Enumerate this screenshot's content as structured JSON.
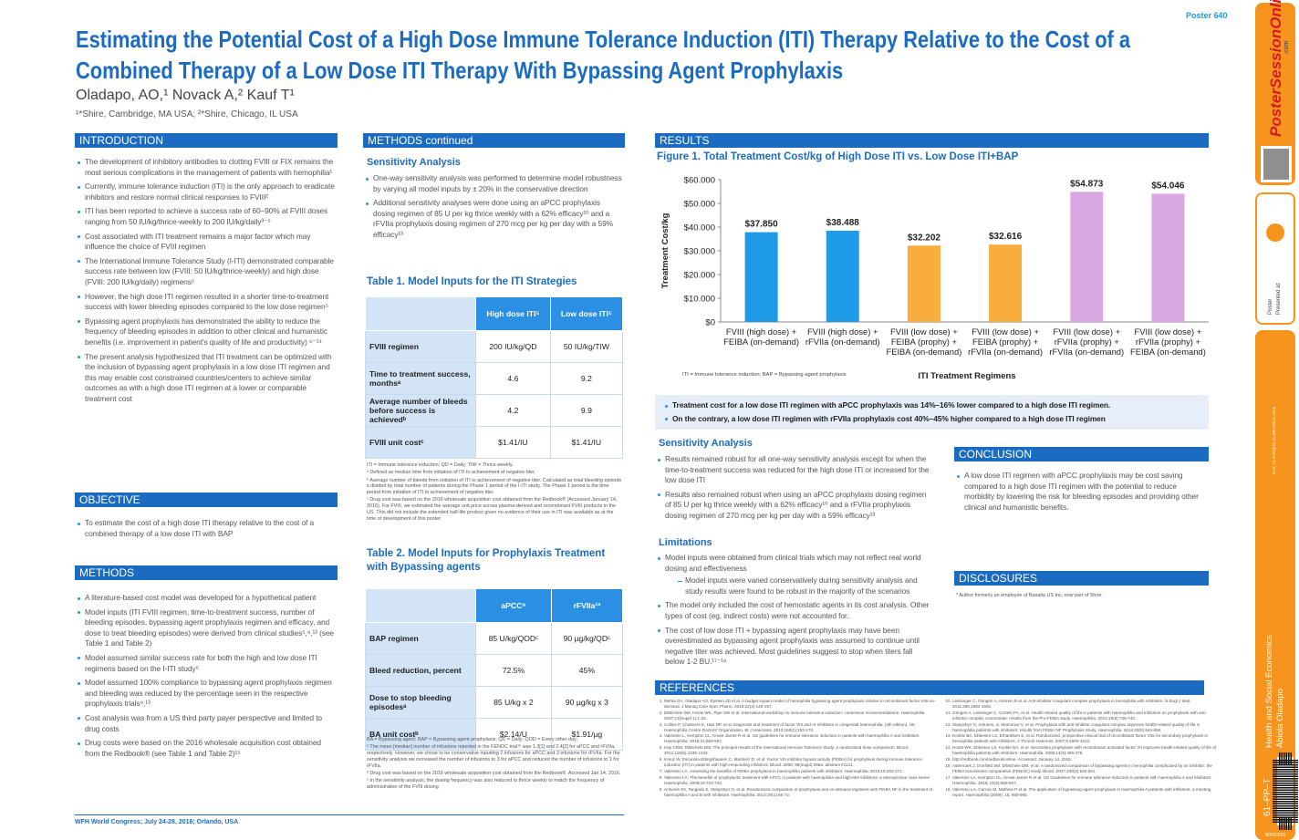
{
  "header": {
    "poster_number": "Poster 640",
    "title": "Estimating the Potential Cost of a High Dose Immune Tolerance Induction (ITI) Therapy Relative to the Cost of a Combined Therapy of a Low Dose ITI Therapy With Bypassing Agent Prophylaxis",
    "authors": "Oladapo, AO,¹ Novack A,² Kauf T¹",
    "affiliations": "¹*Shire, Cambridge, MA USA; ²*Shire, Chicago, IL USA"
  },
  "introduction": {
    "heading": "INTRODUCTION",
    "bullets": [
      "The development of inhibitory antibodies to clotting FVIII or FIX remains the most serious complications in the management of patients with hemophilia¹",
      "Currently, immune tolerance induction (ITI) is the only approach to eradicate inhibitors and restore normal clinical responses to FVIII²",
      "ITI has been reported to achieve a success rate of 60–90% at FVIII doses ranging from 50 IU/kg/thrice-weekly to 200 IU/kg/daily³⁻⁵",
      "Cost associated with ITI treatment remains a major factor which may influence the choice of FVIII regimen",
      "The International Immune Tolerance Study (I-ITI) demonstrated comparable success rate between low (FVIII: 50 IU/kg/thrice-weekly) and high dose (FVIII: 200 IU/kg/daily) regimens⁵",
      "However, the high dose ITI regimen resulted in a shorter time-to-treatment success with lower bleeding episodes compared to the low dose regimen⁵",
      "Bypassing agent prophylaxis has demonstrated the ability to reduce the frequency of bleeding episodes in addition to other clinical and humanistic benefits (i.e. improvement in patient's quality of life and productivity) ⁶⁻¹⁴",
      "The present analysis hypothesized that ITI treatment can be optimized with the inclusion of bypassing agent prophylaxis in a low dose ITI regimen and this may enable cost constrained countries/centers to achieve similar outcomes as with a high dose ITI regimen at a lower or comparable treatment cost"
    ]
  },
  "objective": {
    "heading": "OBJECTIVE",
    "bullets": [
      "To estimate the cost of a high dose ITI therapy relative to the cost of a combined therapy of a low dose ITI with BAP"
    ]
  },
  "methods": {
    "heading": "METHODS",
    "bullets": [
      "A literature-based cost model was developed for a hypothetical patient",
      "Model inputs (ITI FVIII regimen, time-to-treatment success, number of bleeding episodes, bypassing agent prophylaxis regimen and efficacy, and dose to treat bleeding episodes) were derived from clinical studies⁵,⁹,¹³ (see Table 1 and Table 2)",
      "Model assumed similar success rate for both the high and low dose ITI regimens based on the I-ITI study⁵",
      "Model assumed 100% compliance to bypassing agent prophylaxis regimen and bleeding was reduced by the percentage seen in the respective prophylaxis trials⁹,¹³",
      "Cost analysis was from a US third party payer perspective and limited to drug costs",
      "Drug costs were based on the 2016 wholesale acquisition cost obtained from the Redbook® (see Table 1 and Table 2)¹⁵"
    ]
  },
  "methods_continued": {
    "heading": "METHODS continued",
    "sensitivity": {
      "heading": "Sensitivity Analysis",
      "bullets": [
        "One-way sensitivity analysis was performed to determine model robustness by varying all model inputs by ± 20% in the conservative direction",
        "Additional sensitivity analyses were done using an aPCC prophylaxis dosing regimen of 85 U per kg thrice weekly with a 62% efficacy¹⁰ and a rFVIIa prophylaxis dosing regimen of 270 mcg per kg per day with a 59% efficacy¹³"
      ]
    },
    "table1": {
      "title": "Table 1. Model Inputs for the ITI Strategies",
      "columns": [
        "High dose ITI⁵",
        "Low dose ITI⁵"
      ],
      "rows": [
        [
          "FVIII regimen",
          "200 IU/kg/QD",
          "50 IU/kg/TIW"
        ],
        [
          "Time to treatment success, monthsᵃ",
          "4.6",
          "9.2"
        ],
        [
          "Average number of bleeds before success is achievedᵇ",
          "4.2",
          "9.9"
        ],
        [
          "FVIII unit costᶜ",
          "$1.41/IU",
          "$1.41/IU"
        ]
      ],
      "notes": [
        "ITI = Immune tolerance induction; QD = Daily; TIW = Thrice weekly.",
        "ᵃ Defined as median time from initiation of ITI to achievement of negative titer.",
        "ᵇ Average number of bleeds from initiation of ITI to achievement of negative titer. Calculated as total bleeding episode s divided by total number of patients during the Phase 1 period of the I-ITI study. The Phase 1 period is the time period from initiation of ITI to achievement of negative titer.",
        "ᶜ Drug cost was based on the 2016 wholesale acquisition cost obtained from the Redbook® (Accessed January 14, 2016). For FVIII, we estimated the average unit price across plasma-derived and recombinant FVIII products in the US. This did not include the extended half-life product given no evidence of their use in ITI was available as at the time of development of this poster."
      ]
    },
    "table2": {
      "title": "Table 2. Model Inputs for Prophylaxis Treatment with Bypassing agents",
      "columns": [
        "aPCC⁹",
        "rFVIIa¹³"
      ],
      "rows": [
        [
          "BAP regimen",
          "85 U/kg/QODᶜ",
          "90 µg/kg/QDᶜ"
        ],
        [
          "Bleed reduction, percent",
          "72.5%",
          "45%"
        ],
        [
          "Dose to stop bleeding episodesᵃ",
          "85 U/kg x 2",
          "90 µg/kg x 3"
        ],
        [
          "BA unit costᵇ",
          "$2.14/U",
          "$1.91/µg"
        ]
      ],
      "notes": [
        "BA = Bypassing agent; BAP = Bypassing agent prophylaxis; QD = Daily; QOD = Every other day;",
        "ᵃ The mean [median] number of infusions reported in the FENOC trial¹⁶ was 1.3[1] and 2.4[2] for aPCC and rFVIIa, respectively. However, we chose to be conservative inputting 2 infusions for aPCC and 3 infusions for rFVIIa. For the sensitivity analysis we increased the number of infusions to 3 for aPCC and reduced the number of infusions to 1 for rFVIIa.",
        "ᵇ Drug cost was based on the 2016 wholesale acquisition cost obtained from the Redbook®. Accessed Jan 14, 2016.",
        "ᶜ In the sensitivity analysis, the dosing frequency was also reduced to thrice weekly to match the frequency of administration of the FVIII dosing"
      ]
    }
  },
  "results": {
    "heading": "RESULTS",
    "key_findings": [
      "Treatment cost for a low dose ITI regimen with aPCC prophylaxis was 14%–16% lower compared to a high dose ITI regimen.",
      "On the contrary, a low dose ITI regimen with rFVIIa prophylaxis cost 40%–45% higher compared to a high dose ITI regimen"
    ],
    "sensitivity": {
      "heading": "Sensitivity Analysis",
      "bullets": [
        "Results remained robust for all one-way sensitivity analysis except for when the time-to-treatment success was reduced for the high dose ITI or increased for the low dose ITI",
        "Results also remained robust when using an aPCC prophylaxis dosing regimen of 85 U per kg thrice weekly with a 62% efficacy¹⁰ and a rFVIIa prophylaxis dosing regimen of 270 mcg per kg per day with a 59% efficacy¹³"
      ]
    },
    "limitations": {
      "heading": "Limitations",
      "bullets": [
        {
          "text": "Model inputs were obtained from clinical trials which may not reflect real world dosing and effectiveness",
          "sub": [
            "Model inputs were varied conservatively during sensitivity analysis and study results were found to be robust in the majority of the scenarios"
          ]
        },
        {
          "text": "The model only included the cost of hemostatic agents in its cost analysis. Other types of cost (eg, indirect costs) were not accounted for."
        },
        {
          "text": "The cost of low dose ITI + bypassing agent prophylaxis may have been overestimated as bypassing agent prophylaxis was assumed to continue until negative titer was achieved. Most guidelines suggest to stop when titers fall below 1-2 BU.¹⁷⁻¹⁸"
        }
      ]
    }
  },
  "chart_data": {
    "type": "bar",
    "title": "Figure 1.  Total Treatment Cost/kg of High Dose ITI vs. Low Dose ITI+BAP",
    "y_label": "Treatment Cost/kg",
    "x_label": "ITI Treatment Regimens",
    "note": "ITI = Immune tolerance induction; BAP = Bypassing agent prophylaxis",
    "categories": [
      "FVIII (high dose) +\nFEIBA (on-demand)",
      "FVIII (high dose) +\nrFVIIa (on-demand)",
      "FVIII (low dose) +\nFEIBA (prophy) +\nFEIBA (on-demand)",
      "FVIII (low dose) +\nFEIBA (prophy) +\nrFVIIa (on-demand)",
      "FVIII (low dose) +\nrFVIIa (prophy) +\nrFVIIa (on-demand)",
      "FVIII (low dose) +\nrFVIIa (prophy) +\nFEIBA (on-demand)"
    ],
    "values": [
      37850,
      38488,
      32202,
      32616,
      54873,
      54046
    ],
    "value_labels": [
      "$37.850",
      "$38.488",
      "$32.202",
      "$32.616",
      "$54.873",
      "$54.046"
    ],
    "colors": [
      "#1e9ae6",
      "#1e9ae6",
      "#f9ad3e",
      "#f9ad3e",
      "#d9a8e3",
      "#d9a8e3"
    ],
    "ylim": [
      0,
      60000
    ],
    "yticks": [
      {
        "value": 0,
        "label": "$0"
      },
      {
        "value": 10000,
        "label": "$10.000"
      },
      {
        "value": 20000,
        "label": "$20.000"
      },
      {
        "value": 30000,
        "label": "$30.000"
      },
      {
        "value": 40000,
        "label": "$40.000"
      },
      {
        "value": 50000,
        "label": "$50.000"
      },
      {
        "value": 60000,
        "label": "$60.000"
      }
    ],
    "grid": false
  },
  "conclusion": {
    "heading": "CONCLUSION",
    "bullets": [
      "A low dose ITI regimen with aPCC prophylaxis may be cost saving compared to a high dose ITI regimen with the potential to reduce morbidity by lowering the risk for bleeding episodes and providing other clinical and humanistic benefits."
    ]
  },
  "disclosures": {
    "heading": "DISCLOSURES",
    "text": "* Author formerly an employee of Baxalta US Inc, now part of Shire."
  },
  "references": {
    "heading": "REFERENCES",
    "items": [
      "Mehta DA, Oladapo AO, Epstein JD et al. A budget impact model of hemophilia bypassing agent prophylaxis relative to recombinant factor VIIa on-demand. J Manag Care Spec Pharm. 2016;22(2):149-157.",
      "DiMichele DM, Hoots WK, Pipe SW et al. International workshop on immune tolerance induction: consensus recommendations. Haemophilia. 2007;13(Suppl 1):1-22.",
      "Collins P, Chalmers E, Hart DP, et al. Diagnosis and treatment of factor VIII and IX inhibitors in congenital haemophilia: (4th edition). UK Haemophilia Centre Doctors' Organization. Br J Haematol. 2013;160(2):153-170.",
      "Valentino L, Kempton CL, Kruse-Jarres R et al. US guidelines for immune tolerance induction in patients with haemophilia A and inhibitors. Haemophilia. 2015;21:559-567.",
      "Hay CRM, DiMichele DM. The principal results of the International Immune Tolerance Study: a randomized dose comparison. Blood. 2012;119(6):1335-1344.",
      "Kreuz W, Escuriola-Ettingshausen C, Martinez D, et al. Factor VIII inhibitor bypass activity (FEIBA) for prophylaxis during immune tolerance induction (ITI) in patients with high-responding inhibitors. Blood. 2000; 96(suppl):266a. abstract #1141.",
      "Valentino LA. Assessing the benefits of FEIBA prophylaxis in haemophilia patients with inhibitors. Haemophilia. 2010;16:263-271.",
      "Valentino LA. The benefits of prophylactic treatment with APCC in patients with haemophilia and high-titre inhibitors: a retrospective case series. Haemophilia. 2009;15:733-742.",
      "Antunes SV, Tangada S, Stasyshyn O, et al. Randomized comparison of prophylaxis and on-demand regimens with FEIBA NF in the treatment of haemophilia A and B with inhibitors. Haemophilia. 2014;20(1):65-72.",
      "Leissinger C, Gringeri A, Antmen B et al. Anti-inhibitor coagulant complex prophylaxis in hemophilia with inhibitors. N Engl J Med. 2011;365:1684-1692.",
      "Gringeri A, Leissinger C, Cortesi PA, et al. Health-related quality of life in patients with haemophilia and inhibitors on prophylaxis with anti-inhibitor complex concentrate: results from the Pro-FEIBA study. Haemophilia. 2013;19(5):736-743.",
      "Stasyshyn O, Antunes, S, Mamonov V, et al. Prophylaxis with anti-inhibitor coagulant complex improves health-related quality of life in haemophilia patients with inhibitors: results from FEIBA NF Prophylaxis Study. Haemophilia. 2014;20(5):644-650.",
      "Konkle BA, Ebbesen LS, Erhardtsen E, et al. Randomized, prospective clinical trial of recombinant factor VIIa for secondary prophylaxis in hemophilia patients with inhibitors. J Thromb Haemost. 2007;5:1904-1913.",
      "Hoots WK, Ebbesen LS, Konkle BA, et al. Secondary prophylaxis with recombinant activated factor VII improves health-related quality of life of haemophilia patients with inhibitors. Haemophilia. 2008;14(3):466-475.",
      "http://redbook.com/redbook/online. Accessed: January 14, 2016.",
      "Astermark J, Donfield SM, DiMichele DM, et al. A randomized comparison of bypassing agents in hemophilia complicated by an inhibitor: the FEIBA NovoSeven comparative (FENOC) study. Blood. 2007;109(2):546-551.",
      "Valentino LA, Kempton CL, Kruse-Jarres R et al. US Guidelines for immune tolerance induction in patients with haemophilia A and inhibitors. Haemophilia. 2015; 21(5):559-567.",
      "Valentino LA, Carcao M, Mathew P et al. The application of bypassing-agent prophylaxis in haemophilia A patients with inhibitors: a meeting report. Haemophilia (2009), 15, 959-965."
    ]
  },
  "footer": "WFH World Congress; July 24-28, 2016; Orlando, USA",
  "sidebar": {
    "logo": "PosterSessionOnline",
    "logo_suffix": ".com",
    "presented_at": "Presented at:",
    "presented_type": "Poster",
    "doi": "DOI: 10.3252/pso.eu.WFH2016.2016",
    "topic": "Health and Social Economics",
    "presenter": "Abiola Oladapo",
    "code": "61–PP–T",
    "event": "WFH2016"
  }
}
